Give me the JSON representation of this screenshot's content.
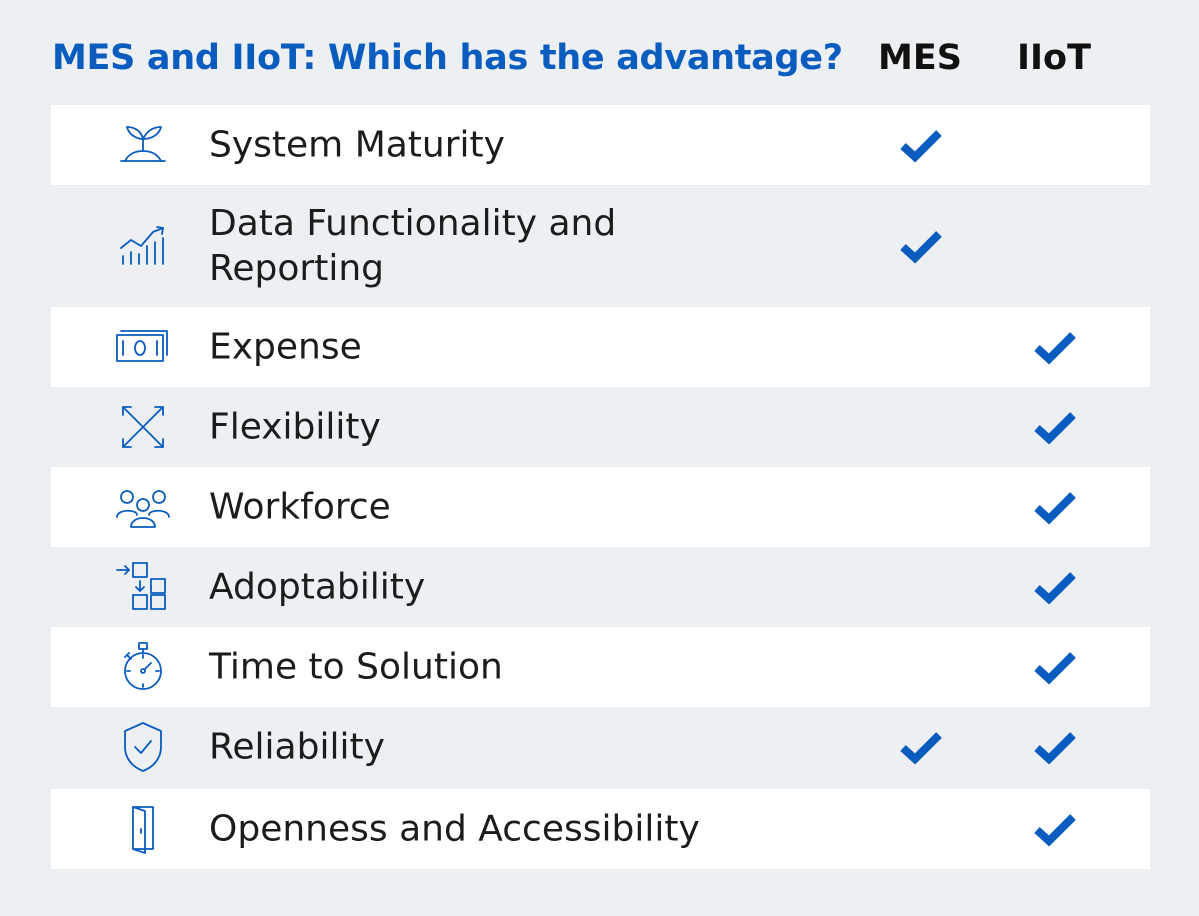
{
  "header": {
    "title": "MES and IIoT: Which has the advantage?",
    "col_mes": "MES",
    "col_iiot": "IIoT"
  },
  "colors": {
    "accent": "#0a5cbf",
    "row_white": "#ffffff",
    "background": "#edf0f3"
  },
  "rows": [
    {
      "label": "System Maturity",
      "icon": "sprout-icon",
      "mes": true,
      "iiot": false
    },
    {
      "label": "Data Functionality and Reporting",
      "icon": "chart-trend-icon",
      "mes": true,
      "iiot": false
    },
    {
      "label": "Expense",
      "icon": "banknote-icon",
      "mes": false,
      "iiot": true
    },
    {
      "label": "Flexibility",
      "icon": "expand-arrows-icon",
      "mes": false,
      "iiot": true
    },
    {
      "label": "Workforce",
      "icon": "people-group-icon",
      "mes": false,
      "iiot": true
    },
    {
      "label": "Adoptability",
      "icon": "blocks-arrow-icon",
      "mes": false,
      "iiot": true
    },
    {
      "label": "Time to Solution",
      "icon": "stopwatch-icon",
      "mes": false,
      "iiot": true
    },
    {
      "label": "Reliability",
      "icon": "shield-check-icon",
      "mes": true,
      "iiot": true
    },
    {
      "label": "Openness and Accessibility",
      "icon": "door-open-icon",
      "mes": false,
      "iiot": true
    }
  ]
}
